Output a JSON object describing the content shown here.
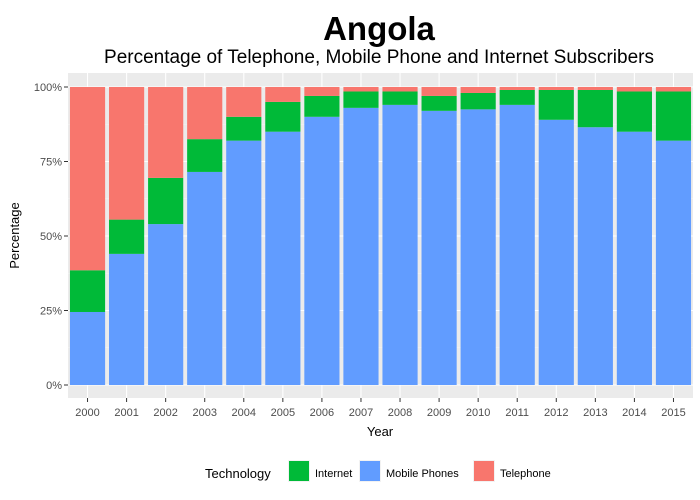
{
  "chart_data": {
    "type": "bar",
    "stacked": true,
    "title": "Angola",
    "subtitle": "Percentage of Telephone, Mobile Phone and Internet Subscribers",
    "xlabel": "Year",
    "ylabel": "Percentage",
    "ylim": [
      0,
      1
    ],
    "y_ticks": [
      0,
      0.25,
      0.5,
      0.75,
      1
    ],
    "y_tick_labels": [
      "0%",
      "25%",
      "50%",
      "75%",
      "100%"
    ],
    "grid": true,
    "legend_position": "bottom",
    "legend_title": "Technology",
    "categories": [
      "2000",
      "2001",
      "2002",
      "2003",
      "2004",
      "2005",
      "2006",
      "2007",
      "2008",
      "2009",
      "2010",
      "2011",
      "2012",
      "2013",
      "2014",
      "2015"
    ],
    "series": [
      {
        "name": "Mobile Phones",
        "color": "#619CFF",
        "values": [
          0.245,
          0.44,
          0.54,
          0.715,
          0.82,
          0.85,
          0.9,
          0.93,
          0.94,
          0.92,
          0.925,
          0.94,
          0.89,
          0.865,
          0.85,
          0.82
        ]
      },
      {
        "name": "Internet",
        "color": "#00BA38",
        "values": [
          0.14,
          0.115,
          0.155,
          0.11,
          0.08,
          0.1,
          0.07,
          0.055,
          0.045,
          0.05,
          0.055,
          0.05,
          0.1,
          0.125,
          0.135,
          0.165
        ]
      },
      {
        "name": "Telephone",
        "color": "#F8766D",
        "values": [
          0.615,
          0.445,
          0.305,
          0.175,
          0.1,
          0.05,
          0.03,
          0.015,
          0.015,
          0.03,
          0.02,
          0.01,
          0.01,
          0.01,
          0.015,
          0.015
        ]
      }
    ],
    "legend_order": [
      "Internet",
      "Mobile Phones",
      "Telephone"
    ]
  }
}
